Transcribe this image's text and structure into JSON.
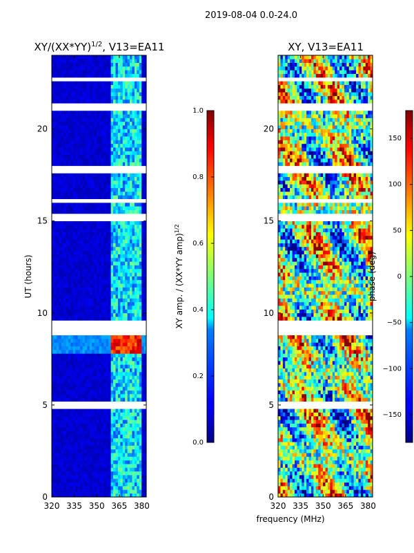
{
  "suptitle": "2019-08-04 0.0-24.0",
  "xlabel": "frequency (MHz)",
  "chart_data": [
    {
      "type": "heatmap",
      "title_main": "XY/(XX*YY)",
      "title_sup": "1/2",
      "title_suffix": ", V13=EA11",
      "ylabel": "UT (hours)",
      "xlim": [
        320,
        383
      ],
      "ylim": [
        0,
        24
      ],
      "xticks": [
        320,
        335,
        350,
        365,
        380
      ],
      "yticks": [
        0,
        5,
        10,
        15,
        20
      ],
      "colorbar": {
        "label_main": "XY amp. / (XX*YY amp)",
        "label_sup": "1/2",
        "range": [
          0.0,
          1.0
        ],
        "ticks": [
          "0.0",
          "0.2",
          "0.4",
          "0.6",
          "0.8",
          "1.0"
        ],
        "tick_values": [
          0.0,
          0.2,
          0.4,
          0.6,
          0.8,
          1.0
        ],
        "colormap": "jet"
      },
      "features": {
        "background_value": 0.08,
        "active_band_mhz": [
          360,
          380
        ],
        "active_band_value": 0.35,
        "strong_event_hours": [
          7.8,
          8.9
        ],
        "strong_event_value": 0.95,
        "flagged_gap_hours": [
          21.0,
          21.2,
          22.6,
          22.8,
          17.8,
          16.0,
          15.2,
          9.4,
          9.0,
          5.0
        ]
      }
    },
    {
      "type": "heatmap",
      "title": "XY, V13=EA11",
      "xlim": [
        320,
        383
      ],
      "ylim": [
        0,
        24
      ],
      "xticks": [
        320,
        335,
        350,
        365,
        380
      ],
      "yticks": [
        0,
        5,
        10,
        15,
        20
      ],
      "colorbar": {
        "label": "phase (deg)",
        "range": [
          -180,
          180
        ],
        "ticks": [
          "−150",
          "−100",
          "−50",
          "0",
          "50",
          "100",
          "150"
        ],
        "tick_values": [
          -150,
          -100,
          -50,
          0,
          50,
          100,
          150
        ],
        "colormap": "jet"
      },
      "features": {
        "background_value": 0,
        "randomized_phase": true,
        "flagged_gap_hours": [
          21.0,
          21.2,
          22.6,
          22.8,
          17.8,
          16.0,
          15.2,
          9.4,
          9.0,
          5.0
        ]
      }
    }
  ],
  "colors": {
    "axis": "#000000",
    "background": "#ffffff"
  }
}
